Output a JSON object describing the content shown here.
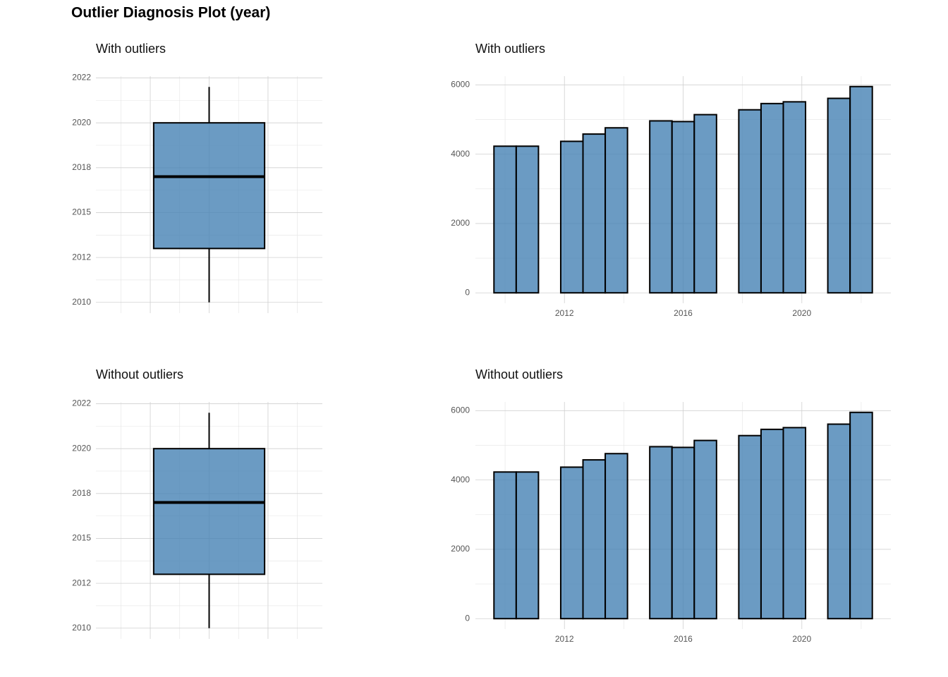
{
  "title": "Outlier Diagnosis Plot (year)",
  "chart_data": [
    {
      "type": "box",
      "title": "With outliers",
      "min": 2010,
      "q1": 2013,
      "median": 2017,
      "q3": 2020,
      "max": 2022,
      "color": "#4682b4",
      "ylim": [
        2009.4,
        2022.6
      ],
      "yticks": [
        2010,
        {
          "value": 2012.5,
          "label": "2012"
        },
        2015,
        {
          "value": 2017.5,
          "label": "2018"
        },
        2020,
        {
          "value": 2022.5,
          "label": "2022"
        }
      ],
      "grid": true
    },
    {
      "type": "histogram",
      "title": "With outliers",
      "color": "#4682b4",
      "bins": [
        2009.625,
        2010.375,
        2011.125,
        2011.875,
        2012.625,
        2013.375,
        2014.125,
        2014.875,
        2015.625,
        2016.375,
        2017.125,
        2017.875,
        2018.625,
        2019.375,
        2020.125,
        2020.875,
        2021.625,
        2022.375
      ],
      "values": [
        4230,
        4230,
        0,
        4370,
        4580,
        4760,
        0,
        4960,
        4940,
        5140,
        0,
        5280,
        5460,
        5510,
        0,
        5610,
        5950
      ],
      "xlim": [
        2009,
        2023
      ],
      "xticks": [
        2012,
        2016,
        2020
      ],
      "ylim": [
        -300,
        6250
      ],
      "yticks": [
        0,
        2000,
        4000,
        6000
      ],
      "grid": true
    },
    {
      "type": "box",
      "title": "Without outliers",
      "min": 2010,
      "q1": 2013,
      "median": 2017,
      "q3": 2020,
      "max": 2022,
      "color": "#4682b4",
      "ylim": [
        2009.4,
        2022.6
      ],
      "yticks": [
        2010,
        {
          "value": 2012.5,
          "label": "2012"
        },
        2015,
        {
          "value": 2017.5,
          "label": "2018"
        },
        2020,
        {
          "value": 2022.5,
          "label": "2022"
        }
      ],
      "grid": true
    },
    {
      "type": "histogram",
      "title": "Without outliers",
      "color": "#4682b4",
      "bins": [
        2009.625,
        2010.375,
        2011.125,
        2011.875,
        2012.625,
        2013.375,
        2014.125,
        2014.875,
        2015.625,
        2016.375,
        2017.125,
        2017.875,
        2018.625,
        2019.375,
        2020.125,
        2020.875,
        2021.625,
        2022.375
      ],
      "values": [
        4230,
        4230,
        0,
        4370,
        4580,
        4760,
        0,
        4960,
        4940,
        5140,
        0,
        5280,
        5460,
        5510,
        0,
        5610,
        5950
      ],
      "xlim": [
        2009,
        2023
      ],
      "xticks": [
        2012,
        2016,
        2020
      ],
      "ylim": [
        -300,
        6250
      ],
      "yticks": [
        0,
        2000,
        4000,
        6000
      ],
      "grid": true
    }
  ]
}
